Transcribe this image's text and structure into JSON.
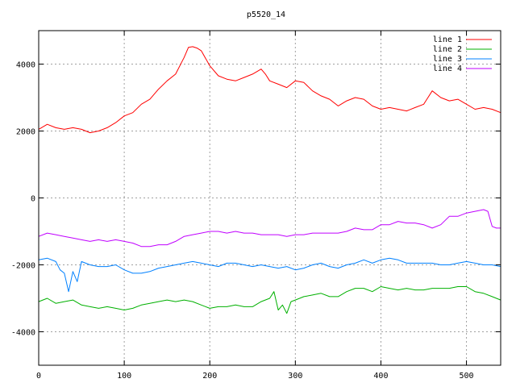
{
  "chart_data": {
    "type": "line",
    "title": "p5520_14",
    "xlabel": "",
    "ylabel": "",
    "xlim": [
      0,
      540
    ],
    "ylim": [
      -5000,
      5000
    ],
    "xticks": [
      0,
      100,
      200,
      300,
      400,
      500
    ],
    "yticks": [
      -4000,
      -2000,
      0,
      2000,
      4000
    ],
    "grid": true,
    "legend_position": "top-right",
    "series": [
      {
        "name": "line 1",
        "color": "#ff0000",
        "x": [
          0,
          10,
          20,
          30,
          40,
          50,
          60,
          70,
          80,
          90,
          100,
          110,
          120,
          130,
          140,
          150,
          160,
          170,
          175,
          180,
          185,
          190,
          200,
          210,
          220,
          230,
          240,
          250,
          260,
          265,
          270,
          280,
          290,
          300,
          310,
          320,
          330,
          340,
          350,
          360,
          370,
          380,
          390,
          400,
          410,
          420,
          430,
          440,
          450,
          455,
          460,
          470,
          480,
          490,
          500,
          510,
          520,
          530,
          540
        ],
        "y": [
          2050,
          2200,
          2100,
          2050,
          2100,
          2050,
          1950,
          2000,
          2100,
          2250,
          2450,
          2550,
          2800,
          2950,
          3250,
          3500,
          3700,
          4200,
          4500,
          4520,
          4480,
          4400,
          3950,
          3650,
          3550,
          3500,
          3600,
          3700,
          3850,
          3700,
          3500,
          3400,
          3300,
          3500,
          3450,
          3200,
          3050,
          2950,
          2750,
          2900,
          3000,
          2950,
          2750,
          2650,
          2700,
          2650,
          2600,
          2700,
          2800,
          3000,
          3200,
          3000,
          2900,
          2950,
          2800,
          2650,
          2700,
          2650,
          2550
        ]
      },
      {
        "name": "line 2",
        "color": "#00b000",
        "x": [
          0,
          10,
          20,
          30,
          40,
          50,
          60,
          70,
          80,
          90,
          100,
          110,
          120,
          130,
          140,
          150,
          160,
          170,
          180,
          190,
          200,
          210,
          220,
          230,
          240,
          250,
          260,
          270,
          275,
          280,
          285,
          290,
          295,
          300,
          310,
          320,
          330,
          340,
          350,
          360,
          370,
          380,
          390,
          400,
          410,
          420,
          430,
          440,
          450,
          460,
          470,
          480,
          490,
          500,
          510,
          520,
          530,
          540
        ],
        "y": [
          -3100,
          -3000,
          -3150,
          -3100,
          -3050,
          -3200,
          -3250,
          -3300,
          -3250,
          -3300,
          -3350,
          -3300,
          -3200,
          -3150,
          -3100,
          -3050,
          -3100,
          -3050,
          -3100,
          -3200,
          -3300,
          -3250,
          -3250,
          -3200,
          -3250,
          -3250,
          -3100,
          -3000,
          -2800,
          -3350,
          -3200,
          -3450,
          -3100,
          -3050,
          -2950,
          -2900,
          -2850,
          -2950,
          -2950,
          -2800,
          -2700,
          -2700,
          -2800,
          -2650,
          -2700,
          -2750,
          -2700,
          -2750,
          -2750,
          -2700,
          -2700,
          -2700,
          -2650,
          -2650,
          -2800,
          -2850,
          -2950,
          -3050
        ]
      },
      {
        "name": "line 3",
        "color": "#0080ff",
        "x": [
          0,
          10,
          20,
          25,
          30,
          35,
          40,
          45,
          50,
          60,
          70,
          80,
          90,
          100,
          110,
          120,
          130,
          140,
          150,
          160,
          170,
          180,
          190,
          200,
          210,
          220,
          230,
          240,
          250,
          260,
          270,
          280,
          290,
          300,
          310,
          320,
          330,
          340,
          350,
          360,
          370,
          380,
          390,
          400,
          410,
          420,
          430,
          440,
          450,
          460,
          470,
          480,
          490,
          500,
          510,
          520,
          530,
          540
        ],
        "y": [
          -1850,
          -1800,
          -1900,
          -2150,
          -2250,
          -2800,
          -2200,
          -2500,
          -1900,
          -2000,
          -2050,
          -2050,
          -2000,
          -2150,
          -2250,
          -2250,
          -2200,
          -2100,
          -2050,
          -2000,
          -1950,
          -1900,
          -1950,
          -2000,
          -2050,
          -1950,
          -1950,
          -2000,
          -2050,
          -2000,
          -2050,
          -2100,
          -2050,
          -2150,
          -2100,
          -2000,
          -1950,
          -2050,
          -2100,
          -2000,
          -1950,
          -1850,
          -1950,
          -1850,
          -1800,
          -1850,
          -1950,
          -1950,
          -1950,
          -1950,
          -2000,
          -2000,
          -1950,
          -1900,
          -1950,
          -2000,
          -2000,
          -2050
        ]
      },
      {
        "name": "line 4",
        "color": "#c000ff",
        "x": [
          0,
          10,
          20,
          30,
          40,
          50,
          60,
          70,
          80,
          90,
          100,
          110,
          120,
          130,
          140,
          150,
          160,
          170,
          180,
          190,
          200,
          210,
          220,
          230,
          240,
          250,
          260,
          270,
          280,
          290,
          300,
          310,
          320,
          330,
          340,
          350,
          360,
          370,
          380,
          390,
          400,
          410,
          420,
          430,
          440,
          450,
          460,
          470,
          480,
          490,
          500,
          510,
          520,
          525,
          530,
          535,
          540
        ],
        "y": [
          -1150,
          -1050,
          -1100,
          -1150,
          -1200,
          -1250,
          -1300,
          -1250,
          -1300,
          -1250,
          -1300,
          -1350,
          -1450,
          -1450,
          -1400,
          -1400,
          -1300,
          -1150,
          -1100,
          -1050,
          -1000,
          -1000,
          -1050,
          -1000,
          -1050,
          -1050,
          -1100,
          -1100,
          -1100,
          -1150,
          -1100,
          -1100,
          -1050,
          -1050,
          -1050,
          -1050,
          -1000,
          -900,
          -950,
          -950,
          -800,
          -800,
          -700,
          -750,
          -750,
          -800,
          -900,
          -800,
          -550,
          -550,
          -450,
          -400,
          -350,
          -400,
          -850,
          -900,
          -900
        ]
      }
    ]
  }
}
